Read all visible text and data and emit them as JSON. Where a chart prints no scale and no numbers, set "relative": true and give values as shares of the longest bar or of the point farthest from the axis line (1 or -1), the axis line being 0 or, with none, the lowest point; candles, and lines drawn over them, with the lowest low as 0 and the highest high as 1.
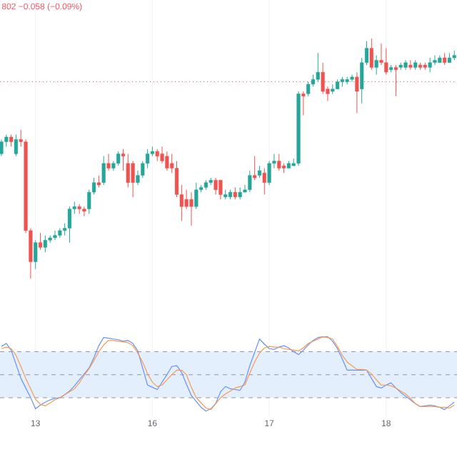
{
  "chart_data": [
    {
      "type": "candlestick",
      "relative": true,
      "grid": "x",
      "tick_labels": false,
      "annotations": [
        "802 −0.058 (−0.09%)"
      ],
      "ref_lines": [
        {
          "axis": "y",
          "value": 0.82,
          "color": "#f7525f",
          "line_style": "dotted"
        }
      ],
      "categories": [
        null,
        null,
        null,
        null,
        null,
        null,
        null,
        "13",
        null,
        null,
        null,
        null,
        null,
        null,
        null,
        null,
        null,
        null,
        null,
        null,
        null,
        null,
        null,
        null,
        null,
        null,
        null,
        null,
        null,
        null,
        null,
        "16",
        null,
        null,
        null,
        null,
        null,
        null,
        null,
        null,
        null,
        null,
        null,
        null,
        null,
        null,
        null,
        null,
        null,
        null,
        null,
        null,
        null,
        null,
        null,
        "17",
        null,
        null,
        null,
        null,
        null,
        null,
        null,
        null,
        null,
        null,
        null,
        null,
        null,
        null,
        null,
        null,
        null,
        null,
        null,
        null,
        null,
        null,
        null,
        "18",
        null,
        null,
        null,
        null,
        null,
        null,
        null,
        null,
        null,
        null,
        null,
        null,
        null,
        null
      ],
      "ohlc": [
        [
          0.52,
          0.58,
          0.51,
          0.57
        ],
        [
          0.57,
          0.6,
          0.55,
          0.59
        ],
        [
          0.59,
          0.6,
          0.55,
          0.57
        ],
        [
          0.52,
          0.6,
          0.51,
          0.58
        ],
        [
          0.58,
          0.62,
          0.55,
          0.57
        ],
        [
          0.57,
          0.58,
          0.19,
          0.2
        ],
        [
          0.2,
          0.21,
          0,
          0.07
        ],
        [
          0.07,
          0.16,
          0.04,
          0.15
        ],
        [
          0.15,
          0.19,
          0.12,
          0.13
        ],
        [
          0.13,
          0.18,
          0.11,
          0.16
        ],
        [
          0.16,
          0.18,
          0.15,
          0.17
        ],
        [
          0.17,
          0.2,
          0.16,
          0.18
        ],
        [
          0.18,
          0.21,
          0.17,
          0.2
        ],
        [
          0.2,
          0.23,
          0.18,
          0.21
        ],
        [
          0.21,
          0.3,
          0.15,
          0.29
        ],
        [
          0.29,
          0.32,
          0.27,
          0.3
        ],
        [
          0.3,
          0.31,
          0.27,
          0.29
        ],
        [
          0.29,
          0.3,
          0.26,
          0.28
        ],
        [
          0.29,
          0.37,
          0.27,
          0.36
        ],
        [
          0.36,
          0.42,
          0.35,
          0.4
        ],
        [
          0.4,
          0.43,
          0.38,
          0.39
        ],
        [
          0.4,
          0.51,
          0.39,
          0.48
        ],
        [
          0.48,
          0.52,
          0.45,
          0.46
        ],
        [
          0.46,
          0.49,
          0.45,
          0.48
        ],
        [
          0.48,
          0.53,
          0.47,
          0.52
        ],
        [
          0.52,
          0.54,
          0.45,
          0.51
        ],
        [
          0.48,
          0.52,
          0.38,
          0.4
        ],
        [
          0.48,
          0.49,
          0.34,
          0.4
        ],
        [
          0.4,
          0.45,
          0.39,
          0.43
        ],
        [
          0.43,
          0.49,
          0.42,
          0.48
        ],
        [
          0.48,
          0.54,
          0.46,
          0.52
        ],
        [
          0.52,
          0.55,
          0.51,
          0.53
        ],
        [
          0.53,
          0.54,
          0.49,
          0.51
        ],
        [
          0.52,
          0.55,
          0.48,
          0.49
        ],
        [
          0.51,
          0.53,
          0.45,
          0.46
        ],
        [
          0.48,
          0.52,
          0.44,
          0.46
        ],
        [
          0.46,
          0.49,
          0.34,
          0.35
        ],
        [
          0.35,
          0.39,
          0.24,
          0.3
        ],
        [
          0.33,
          0.37,
          0.29,
          0.3
        ],
        [
          0.33,
          0.36,
          0.22,
          0.3
        ],
        [
          0.3,
          0.4,
          0.29,
          0.37
        ],
        [
          0.37,
          0.39,
          0.36,
          0.38
        ],
        [
          0.38,
          0.41,
          0.37,
          0.4
        ],
        [
          0.4,
          0.42,
          0.39,
          0.41
        ],
        [
          0.41,
          0.42,
          0.35,
          0.37
        ],
        [
          0.41,
          0.41,
          0.33,
          0.35
        ],
        [
          0.34,
          0.37,
          0.33,
          0.35
        ],
        [
          0.34,
          0.37,
          0.33,
          0.36
        ],
        [
          0.36,
          0.38,
          0.33,
          0.34
        ],
        [
          0.34,
          0.38,
          0.33,
          0.36
        ],
        [
          0.36,
          0.39,
          0.36,
          0.37
        ],
        [
          0.37,
          0.45,
          0.36,
          0.43
        ],
        [
          0.43,
          0.51,
          0.41,
          0.42
        ],
        [
          0.43,
          0.47,
          0.42,
          0.45
        ],
        [
          0.44,
          0.46,
          0.35,
          0.4
        ],
        [
          0.4,
          0.49,
          0.39,
          0.48
        ],
        [
          0.48,
          0.52,
          0.46,
          0.49
        ],
        [
          0.49,
          0.52,
          0.45,
          0.46
        ],
        [
          0.47,
          0.48,
          0.44,
          0.46
        ],
        [
          0.46,
          0.49,
          0.46,
          0.48
        ],
        [
          0.47,
          0.5,
          0.47,
          0.48
        ],
        [
          0.48,
          0.78,
          0.47,
          0.77
        ],
        [
          0.77,
          0.78,
          0.68,
          0.76
        ],
        [
          0.77,
          0.82,
          0.76,
          0.81
        ],
        [
          0.81,
          0.85,
          0.8,
          0.83
        ],
        [
          0.83,
          0.94,
          0.82,
          0.86
        ],
        [
          0.86,
          0.9,
          0.77,
          0.78
        ],
        [
          0.79,
          0.8,
          0.74,
          0.77
        ],
        [
          0.78,
          0.81,
          0.77,
          0.79
        ],
        [
          0.79,
          0.83,
          0.79,
          0.82
        ],
        [
          0.82,
          0.84,
          0.8,
          0.83
        ],
        [
          0.82,
          0.84,
          0.81,
          0.83
        ],
        [
          0.83,
          0.85,
          0.82,
          0.84
        ],
        [
          0.84,
          0.86,
          0.69,
          0.78
        ],
        [
          0.79,
          0.92,
          0.73,
          0.9
        ],
        [
          0.9,
          0.99,
          0.89,
          0.96
        ],
        [
          0.96,
          1.0,
          0.87,
          0.88
        ],
        [
          0.88,
          0.93,
          0.85,
          0.91
        ],
        [
          0.91,
          0.98,
          0.89,
          0.9
        ],
        [
          0.9,
          0.96,
          0.85,
          0.86
        ],
        [
          0.87,
          0.89,
          0.86,
          0.88
        ],
        [
          0.88,
          0.89,
          0.76,
          0.87
        ],
        [
          0.88,
          0.9,
          0.87,
          0.89
        ],
        [
          0.88,
          0.91,
          0.87,
          0.9
        ],
        [
          0.89,
          0.91,
          0.87,
          0.88
        ],
        [
          0.88,
          0.91,
          0.87,
          0.9
        ],
        [
          0.89,
          0.9,
          0.87,
          0.88
        ],
        [
          0.89,
          0.9,
          0.87,
          0.88
        ],
        [
          0.88,
          0.92,
          0.86,
          0.9
        ],
        [
          0.9,
          0.93,
          0.89,
          0.91
        ],
        [
          0.9,
          0.93,
          0.9,
          0.92
        ],
        [
          0.92,
          0.94,
          0.89,
          0.9
        ],
        [
          0.9,
          0.94,
          0.9,
          0.92
        ],
        [
          0.92,
          0.95,
          0.91,
          0.93
        ]
      ]
    },
    {
      "type": "line",
      "relative": true,
      "grid": "x",
      "categories": [
        null,
        null,
        null,
        null,
        null,
        null,
        null,
        "13",
        null,
        null,
        null,
        null,
        null,
        null,
        null,
        null,
        null,
        null,
        null,
        null,
        null,
        null,
        null,
        null,
        null,
        null,
        null,
        null,
        null,
        null,
        null,
        "16",
        null,
        null,
        null,
        null,
        null,
        null,
        null,
        null,
        null,
        null,
        null,
        null,
        null,
        null,
        null,
        null,
        null,
        null,
        null,
        null,
        null,
        null,
        null,
        "17",
        null,
        null,
        null,
        null,
        null,
        null,
        null,
        null,
        null,
        null,
        null,
        null,
        null,
        null,
        null,
        null,
        null,
        null,
        null,
        null,
        null,
        null,
        null,
        "18",
        null,
        null,
        null,
        null,
        null,
        null,
        null,
        null,
        null,
        null,
        null,
        null,
        null,
        null
      ],
      "bands": [
        {
          "axis": "y",
          "from": 0.18,
          "to": 0.8,
          "color": "#e3effd"
        }
      ],
      "ref_lines": [
        {
          "axis": "y",
          "value": 0.18,
          "color": "#9598a1",
          "line_style": "dashed"
        },
        {
          "axis": "y",
          "value": 0.49,
          "color": "#9598a1",
          "line_style": "dashed"
        },
        {
          "axis": "y",
          "value": 0.8,
          "color": "#9598a1",
          "line_style": "dashed"
        }
      ],
      "series": [
        {
          "color": "#6a8ff7",
          "values": [
            0.87,
            0.91,
            0.82,
            0.63,
            0.44,
            0.31,
            0.18,
            0.03,
            0.08,
            0.12,
            0.15,
            0.17,
            0.18,
            0.22,
            0.27,
            0.34,
            0.42,
            0.5,
            0.58,
            0.72,
            0.88,
            0.99,
            0.98,
            0.97,
            0.96,
            0.94,
            0.95,
            0.91,
            0.81,
            0.58,
            0.35,
            0.32,
            0.29,
            0.39,
            0.49,
            0.6,
            0.61,
            0.52,
            0.36,
            0.21,
            0.13,
            0.05,
            0,
            0.03,
            0.1,
            0.26,
            0.33,
            0.3,
            0.29,
            0.28,
            0.39,
            0.61,
            0.79,
            0.97,
            0.9,
            0.84,
            0.83,
            0.86,
            0.88,
            0.85,
            0.8,
            0.76,
            0.82,
            0.89,
            0.95,
            0.99,
            1.0,
            1.0,
            0.94,
            0.84,
            0.7,
            0.55,
            0.55,
            0.55,
            0.55,
            0.55,
            0.44,
            0.33,
            0.31,
            0.35,
            0.38,
            0.31,
            0.25,
            0.2,
            0.15,
            0.1,
            0.06,
            0.07,
            0.08,
            0.07,
            0.05,
            0.02,
            0.07,
            0.12
          ]
        },
        {
          "color": "#f89a52",
          "values": [
            0.84,
            0.86,
            0.84,
            0.75,
            0.6,
            0.44,
            0.3,
            0.16,
            0.09,
            0.07,
            0.11,
            0.15,
            0.18,
            0.22,
            0.26,
            0.3,
            0.38,
            0.48,
            0.57,
            0.68,
            0.8,
            0.89,
            0.95,
            0.95,
            0.94,
            0.93,
            0.92,
            0.88,
            0.78,
            0.66,
            0.5,
            0.39,
            0.33,
            0.35,
            0.42,
            0.49,
            0.55,
            0.55,
            0.49,
            0.32,
            0.18,
            0.11,
            0.04,
            0.02,
            0.1,
            0.18,
            0.23,
            0.27,
            0.31,
            0.33,
            0.35,
            0.51,
            0.66,
            0.78,
            0.85,
            0.87,
            0.86,
            0.86,
            0.84,
            0.83,
            0.82,
            0.81,
            0.85,
            0.91,
            0.94,
            0.97,
            1.0,
            0.99,
            0.97,
            0.87,
            0.75,
            0.66,
            0.61,
            0.56,
            0.56,
            0.55,
            0.5,
            0.42,
            0.35,
            0.35,
            0.34,
            0.31,
            0.27,
            0.23,
            0.17,
            0.1,
            0.06,
            0.06,
            0.06,
            0.06,
            0.05,
            0.05,
            0.04,
            0.08
          ]
        }
      ]
    }
  ]
}
